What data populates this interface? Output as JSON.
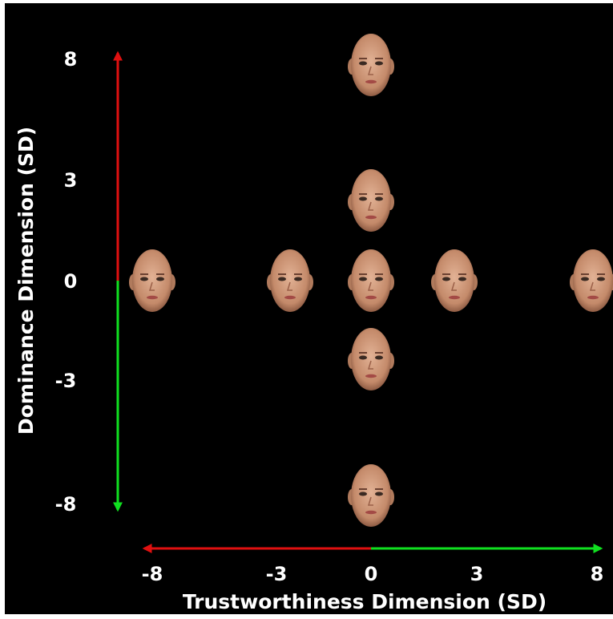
{
  "x_axis": {
    "label": "Trustworthiness Dimension (SD)",
    "ticks": [
      "-8",
      "-3",
      "0",
      "3",
      "8"
    ]
  },
  "y_axis": {
    "label": "Dominance Dimension (SD)",
    "ticks": [
      "8",
      "3",
      "0",
      "-3",
      "-8"
    ]
  }
}
